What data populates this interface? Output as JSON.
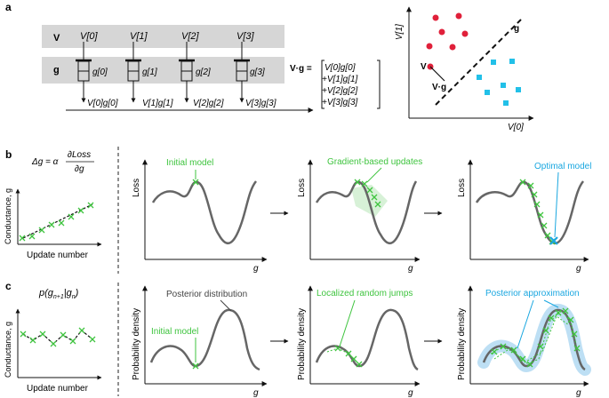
{
  "colors": {
    "green": "#3fc43f",
    "blue": "#1aa7e0",
    "red": "#e0203a",
    "cyan": "#22c0e8",
    "gray_band": "#d6d6d6",
    "curve": "#666666",
    "halo_green": "#cdeecd",
    "halo_blue": "#b6dcf3"
  },
  "panel_a": {
    "label": "a",
    "row_v_label": "V",
    "row_g_label": "g",
    "voltages": [
      "V[0]",
      "V[1]",
      "V[2]",
      "V[3]"
    ],
    "conductances": [
      "g[0]",
      "g[1]",
      "g[2]",
      "g[3]"
    ],
    "products": [
      "V[0]g[0]",
      "V[1]g[1]",
      "V[2]g[2]",
      "V[3]g[3]"
    ],
    "dot_label": "V·g =",
    "sum_terms": [
      "V[0]g[0]",
      "+V[1]g[1]",
      "+V[2]g[2]",
      "+V[3]g[3]"
    ],
    "scatter": {
      "ylabel": "V[1]",
      "xlabel": "V[0]",
      "boundary_label": "g",
      "point_label": "V",
      "projection_label": "V·g"
    }
  },
  "panel_b": {
    "label": "b",
    "eq_lhs": "Δg = α",
    "eq_num": "∂Loss",
    "eq_den": "∂g",
    "small_ylabel": "Conductance, g",
    "small_xlabel": "Update number",
    "ylabel": "Loss",
    "xlabel": "g",
    "ann_initial": "Initial model",
    "ann_gradient": "Gradient-based updates",
    "ann_optimal": "Optimal model"
  },
  "panel_c": {
    "label": "c",
    "eq_p": "p(g",
    "eq_sub1": "n+1",
    "eq_mid": "|g",
    "eq_sub2": "n",
    "eq_end": ")",
    "small_ylabel": "Conductance, g",
    "small_xlabel": "Update number",
    "ylabel": "Probability density",
    "xlabel": "g",
    "ann_posterior": "Posterior distribution",
    "ann_initial": "Initial model",
    "ann_jumps": "Localized random jumps",
    "ann_approx": "Posterior approximation"
  }
}
